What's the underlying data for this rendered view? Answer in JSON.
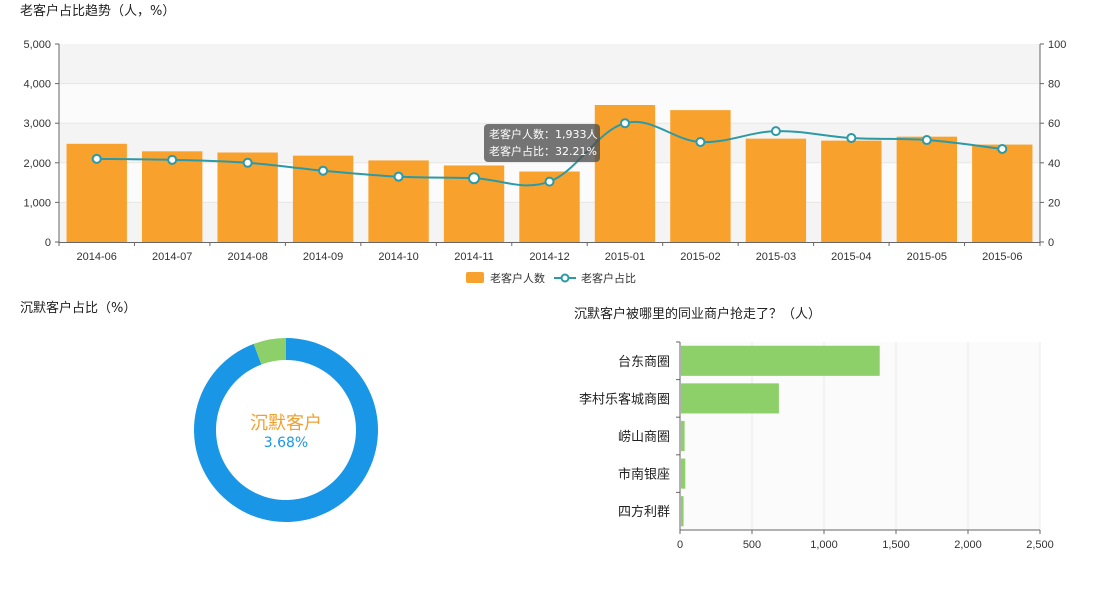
{
  "titles": {
    "trend": "老客户占比趋势（人，%）",
    "silent": "沉默客户占比（%）",
    "competitor": "沉默客户被哪里的同业商户抢走了？（人）"
  },
  "chart_data": [
    {
      "type": "bar",
      "title": "老客户占比趋势（人，%）",
      "categories": [
        "2014-06",
        "2014-07",
        "2014-08",
        "2014-09",
        "2014-10",
        "2014-11",
        "2014-12",
        "2015-01",
        "2015-02",
        "2015-03",
        "2015-04",
        "2015-05",
        "2015-06"
      ],
      "yticks_left": [
        "0",
        "1,000",
        "2,000",
        "3,000",
        "4,000",
        "5,000"
      ],
      "yticks_right": [
        "0",
        "20",
        "40",
        "60",
        "80",
        "100"
      ],
      "ylim_left": [
        0,
        5000
      ],
      "ylim_right": [
        0,
        100
      ],
      "series": [
        {
          "name": "老客户人数",
          "kind": "bar",
          "axis": "left",
          "color": "#f8a12d",
          "values": [
            2480,
            2290,
            2260,
            2180,
            2060,
            1933,
            1780,
            3460,
            3330,
            2610,
            2560,
            2660,
            2460
          ]
        },
        {
          "name": "老客户占比",
          "kind": "line",
          "axis": "right",
          "color": "#2c9aa6",
          "values": [
            42,
            41.5,
            40,
            36,
            33,
            32.21,
            30.5,
            60,
            50.5,
            56,
            52.5,
            51.5,
            47
          ]
        }
      ],
      "legend": {
        "items": [
          "老客户人数",
          "老客户占比"
        ],
        "position": "bottom"
      },
      "tooltip": {
        "line1": "老客户人数：1,933人",
        "line2": "老客户占比：32.21%"
      }
    },
    {
      "type": "pie",
      "title": "沉默客户占比（%）",
      "values": [
        3.68,
        96.32
      ],
      "colors": [
        "#8dd06a",
        "#1a96e6"
      ],
      "center_name": "沉默客户",
      "center_value": "3.68%"
    },
    {
      "type": "bar",
      "orientation": "horizontal",
      "title": "沉默客户被哪里的同业商户抢走了？（人）",
      "categories": [
        "台东商圈",
        "李村乐客城商圈",
        "崂山商圈",
        "市南银座",
        "四方利群"
      ],
      "values": [
        1380,
        680,
        25,
        30,
        18
      ],
      "color": "#8dd06a",
      "xticks": [
        "0",
        "500",
        "1,000",
        "1,500",
        "2,000",
        "2,500"
      ],
      "xlim": [
        0,
        2500
      ]
    }
  ]
}
